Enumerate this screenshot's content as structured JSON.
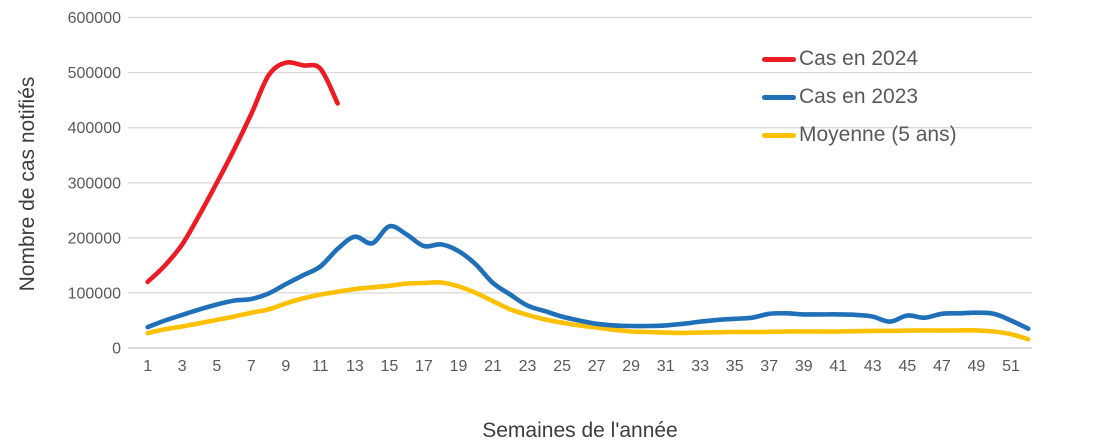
{
  "chart_data": {
    "type": "line",
    "title": "",
    "xlabel": "Semaines de l'année",
    "ylabel": "Nombre de cas notifiés",
    "ylim": [
      0,
      600000
    ],
    "y_tick_values": [
      0,
      100000,
      200000,
      300000,
      400000,
      500000,
      600000
    ],
    "y_tick_labels": [
      "0",
      "100000",
      "200000",
      "300000",
      "400000",
      "500000",
      "600000"
    ],
    "x_tick_labels": [
      "1",
      "3",
      "5",
      "7",
      "9",
      "11",
      "13",
      "15",
      "17",
      "19",
      "21",
      "23",
      "25",
      "27",
      "29",
      "31",
      "33",
      "35",
      "37",
      "39",
      "41",
      "43",
      "45",
      "47",
      "49",
      "51"
    ],
    "x_tick_weeks": [
      1,
      3,
      5,
      7,
      9,
      11,
      13,
      15,
      17,
      19,
      21,
      23,
      25,
      27,
      29,
      31,
      33,
      35,
      37,
      39,
      41,
      43,
      45,
      47,
      49,
      51
    ],
    "grid": "horizontal",
    "legend_position": "top-right",
    "x_unit": "week",
    "series": [
      {
        "name": "Cas en 2024",
        "color": "#ED1C24",
        "x_start": 1,
        "values": [
          120000,
          150000,
          188000,
          242000,
          300000,
          360000,
          425000,
          495000,
          518000,
          513000,
          507000,
          444000
        ]
      },
      {
        "name": "Cas en 2023",
        "color": "#1F70B8",
        "x_start": 1,
        "values": [
          38000,
          50000,
          60000,
          70000,
          79000,
          86000,
          89000,
          99000,
          116000,
          132000,
          148000,
          180000,
          202000,
          190000,
          221000,
          206000,
          185000,
          188000,
          176000,
          152000,
          118000,
          97000,
          77000,
          67000,
          57000,
          50000,
          44000,
          41000,
          40000,
          40000,
          41000,
          44000,
          48000,
          51000,
          53000,
          55000,
          62000,
          63000,
          61000,
          61000,
          61000,
          60000,
          57000,
          48000,
          59000,
          55000,
          62000,
          63000,
          64000,
          62000,
          50000,
          35000
        ]
      },
      {
        "name": "Moyenne (5 ans)",
        "color": "#FFC000",
        "x_start": 1,
        "values": [
          27000,
          34000,
          39000,
          45000,
          51000,
          57000,
          64000,
          70000,
          81000,
          90000,
          97000,
          102000,
          107000,
          110000,
          113000,
          117000,
          118000,
          119000,
          112000,
          100000,
          85000,
          70000,
          60000,
          52000,
          46000,
          41000,
          37000,
          33000,
          30000,
          29000,
          28000,
          27500,
          28000,
          28500,
          29000,
          29000,
          29500,
          30000,
          30000,
          30000,
          30000,
          30500,
          31000,
          31000,
          31500,
          32000,
          31500,
          32000,
          32000,
          30000,
          25000,
          16000
        ]
      }
    ],
    "colors": {
      "gridline": "#D9D9D9",
      "axis_line": "#BFBFBF",
      "tick_text": "#595959",
      "title_text": "#3d3d3d"
    }
  }
}
